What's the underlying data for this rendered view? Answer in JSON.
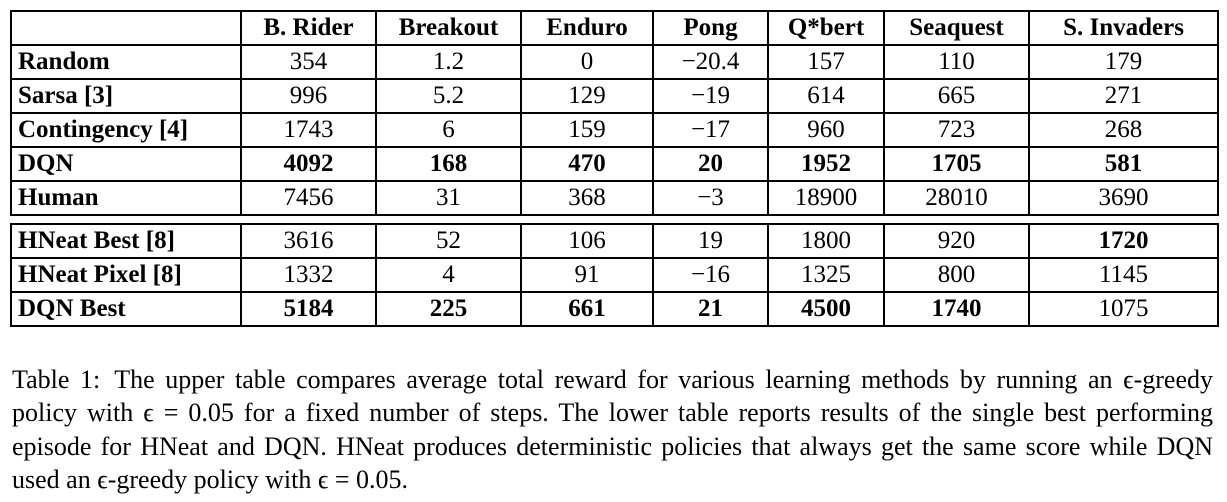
{
  "table": {
    "columns": [
      "",
      "B. Rider",
      "Breakout",
      "Enduro",
      "Pong",
      "Q*bert",
      "Seaquest",
      "S. Invaders"
    ],
    "upper_rows": [
      {
        "label": "Random",
        "values": [
          "354",
          "1.2",
          "0",
          "−20.4",
          "157",
          "110",
          "179"
        ],
        "bold": [
          false,
          false,
          false,
          false,
          false,
          false,
          false
        ]
      },
      {
        "label": "Sarsa [3]",
        "values": [
          "996",
          "5.2",
          "129",
          "−19",
          "614",
          "665",
          "271"
        ],
        "bold": [
          false,
          false,
          false,
          false,
          false,
          false,
          false
        ]
      },
      {
        "label": "Contingency [4]",
        "values": [
          "1743",
          "6",
          "159",
          "−17",
          "960",
          "723",
          "268"
        ],
        "bold": [
          false,
          false,
          false,
          false,
          false,
          false,
          false
        ]
      },
      {
        "label": "DQN",
        "values": [
          "4092",
          "168",
          "470",
          "20",
          "1952",
          "1705",
          "581"
        ],
        "bold": [
          true,
          true,
          true,
          true,
          true,
          true,
          true
        ]
      },
      {
        "label": "Human",
        "values": [
          "7456",
          "31",
          "368",
          "−3",
          "18900",
          "28010",
          "3690"
        ],
        "bold": [
          false,
          false,
          false,
          false,
          false,
          false,
          false
        ]
      }
    ],
    "lower_rows": [
      {
        "label": "HNeat Best [8]",
        "values": [
          "3616",
          "52",
          "106",
          "19",
          "1800",
          "920",
          "1720"
        ],
        "bold": [
          false,
          false,
          false,
          false,
          false,
          false,
          true
        ]
      },
      {
        "label": "HNeat Pixel [8]",
        "values": [
          "1332",
          "4",
          "91",
          "−16",
          "1325",
          "800",
          "1145"
        ],
        "bold": [
          false,
          false,
          false,
          false,
          false,
          false,
          false
        ]
      },
      {
        "label": "DQN Best",
        "values": [
          "5184",
          "225",
          "661",
          "21",
          "4500",
          "1740",
          "1075"
        ],
        "bold": [
          true,
          true,
          true,
          true,
          true,
          true,
          false
        ]
      }
    ]
  },
  "caption": {
    "label": "Table 1:",
    "text": "The upper table compares average total reward for various learning methods by running an ϵ-greedy policy with ϵ = 0.05 for a fixed number of steps. The lower table reports results of the single best performing episode for HNeat and DQN. HNeat produces deterministic policies that always get the same score while DQN used an ϵ-greedy policy with ϵ = 0.05."
  }
}
